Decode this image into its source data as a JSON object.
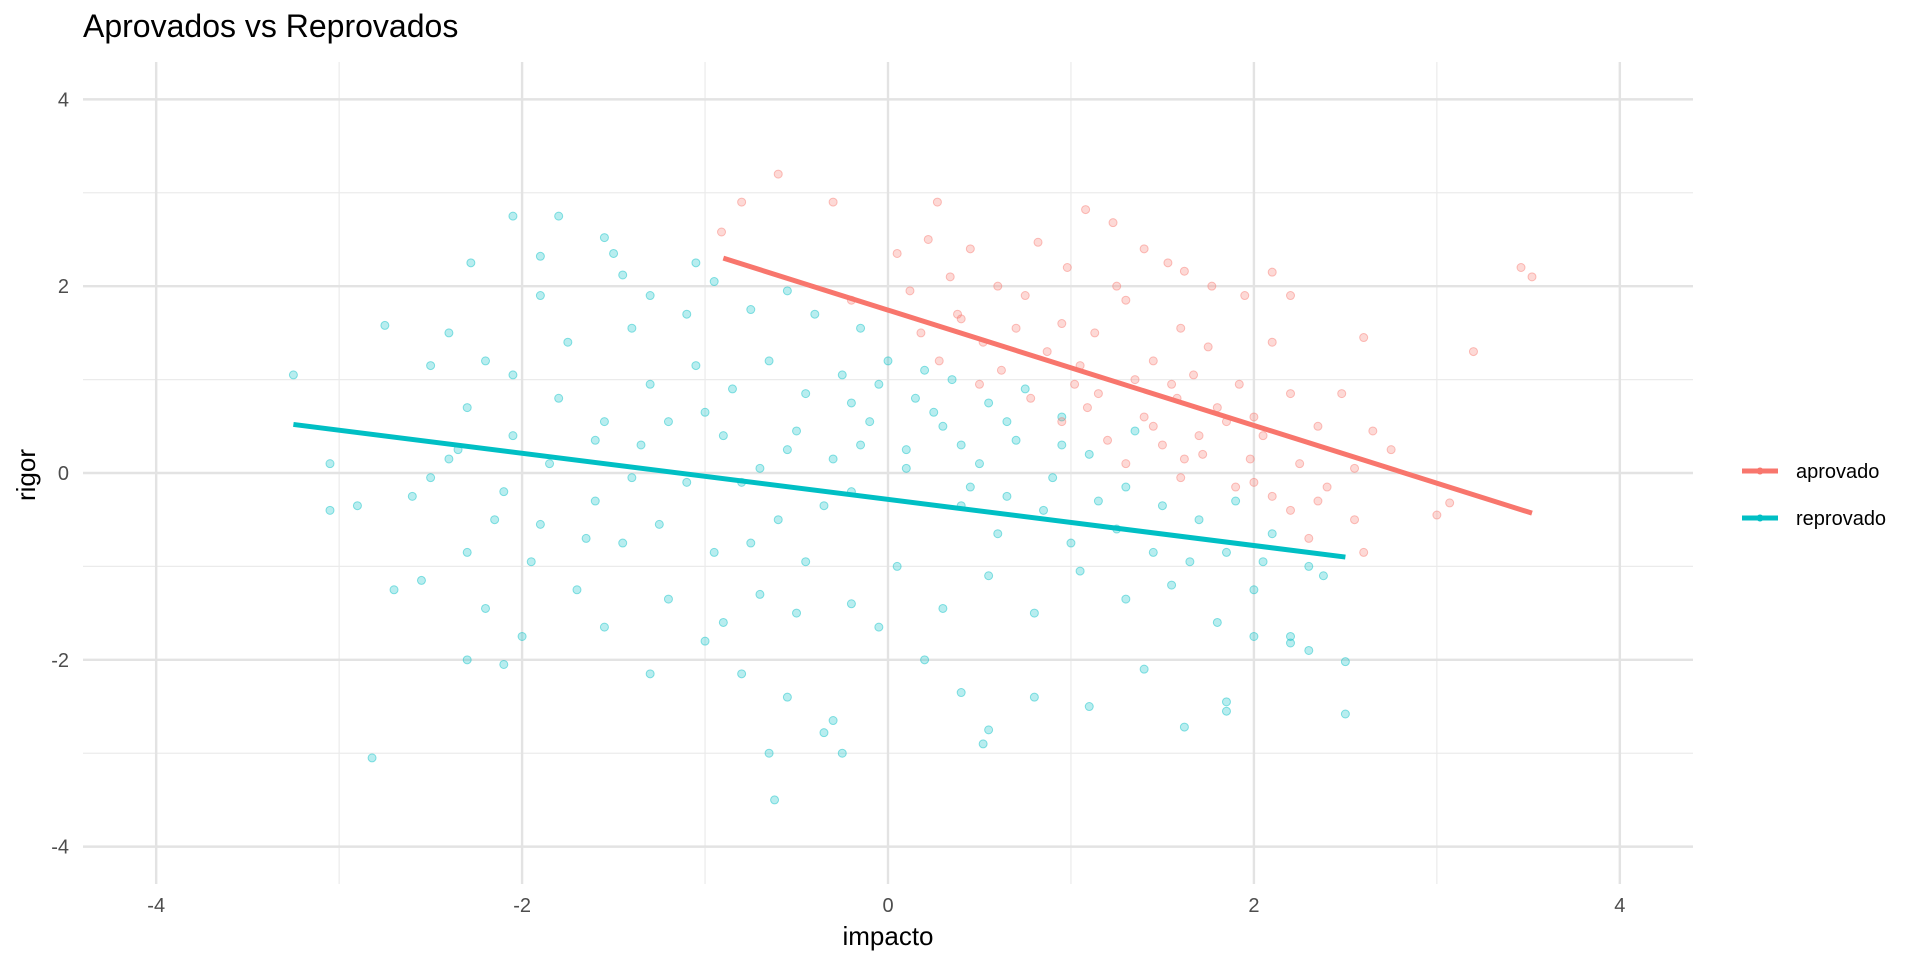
{
  "chart_data": {
    "type": "scatter",
    "title": "Aprovados vs Reprovados",
    "xlabel": "impacto",
    "ylabel": "rigor",
    "xlim": [
      -4.4,
      4.4
    ],
    "ylim": [
      -4.4,
      4.4
    ],
    "x_ticks": [
      -4,
      -2,
      0,
      2,
      4
    ],
    "y_ticks": [
      -4,
      -2,
      0,
      2,
      4
    ],
    "x_tick_labels": [
      "-4",
      "-2",
      "0",
      "2",
      "4"
    ],
    "y_tick_labels": [
      "-4",
      "-2",
      "0",
      "2",
      "4"
    ],
    "grid": true,
    "legend_position": "right",
    "series": [
      {
        "name": "aprovado",
        "color": "#F8766D",
        "trend_line": [
          [
            -0.9,
            2.3
          ],
          [
            3.52,
            -0.43
          ]
        ],
        "points": [
          [
            -0.6,
            3.2
          ],
          [
            -0.8,
            2.9
          ],
          [
            -0.3,
            2.9
          ],
          [
            0.27,
            2.9
          ],
          [
            1.08,
            2.82
          ],
          [
            1.23,
            2.68
          ],
          [
            3.46,
            2.2
          ],
          [
            3.52,
            2.1
          ],
          [
            -0.91,
            2.58
          ],
          [
            0.82,
            2.47
          ],
          [
            0.22,
            2.5
          ],
          [
            0.45,
            2.4
          ],
          [
            1.4,
            2.4
          ],
          [
            1.62,
            2.16
          ],
          [
            2.1,
            2.15
          ],
          [
            1.77,
            2.0
          ],
          [
            0.05,
            2.35
          ],
          [
            0.34,
            2.1
          ],
          [
            0.6,
            2.0
          ],
          [
            0.98,
            2.2
          ],
          [
            1.25,
            2.0
          ],
          [
            1.53,
            2.25
          ],
          [
            0.12,
            1.95
          ],
          [
            0.75,
            1.9
          ],
          [
            -0.2,
            1.85
          ],
          [
            0.38,
            1.7
          ],
          [
            0.95,
            1.6
          ],
          [
            1.3,
            1.85
          ],
          [
            1.6,
            1.55
          ],
          [
            1.95,
            1.9
          ],
          [
            2.2,
            1.9
          ],
          [
            2.6,
            1.45
          ],
          [
            3.2,
            1.3
          ],
          [
            0.18,
            1.5
          ],
          [
            0.52,
            1.4
          ],
          [
            0.87,
            1.3
          ],
          [
            1.13,
            1.5
          ],
          [
            1.45,
            1.2
          ],
          [
            1.75,
            1.35
          ],
          [
            2.1,
            1.4
          ],
          [
            0.28,
            1.2
          ],
          [
            0.62,
            1.1
          ],
          [
            1.02,
            0.95
          ],
          [
            1.35,
            1.0
          ],
          [
            1.67,
            1.05
          ],
          [
            1.92,
            0.95
          ],
          [
            2.2,
            0.85
          ],
          [
            2.48,
            0.85
          ],
          [
            0.78,
            0.8
          ],
          [
            1.09,
            0.7
          ],
          [
            1.4,
            0.6
          ],
          [
            1.58,
            0.8
          ],
          [
            1.85,
            0.55
          ],
          [
            2.05,
            0.4
          ],
          [
            2.35,
            0.5
          ],
          [
            2.65,
            0.45
          ],
          [
            0.95,
            0.55
          ],
          [
            1.2,
            0.35
          ],
          [
            1.5,
            0.3
          ],
          [
            1.72,
            0.2
          ],
          [
            1.98,
            0.15
          ],
          [
            2.25,
            0.1
          ],
          [
            2.55,
            0.05
          ],
          [
            0.5,
            0.95
          ],
          [
            1.3,
            0.1
          ],
          [
            1.6,
            -0.05
          ],
          [
            1.9,
            -0.15
          ],
          [
            2.1,
            -0.25
          ],
          [
            2.35,
            -0.3
          ],
          [
            2.55,
            -0.5
          ],
          [
            3.0,
            -0.45
          ],
          [
            3.07,
            -0.32
          ],
          [
            1.45,
            0.5
          ],
          [
            1.7,
            0.4
          ],
          [
            2.0,
            -0.1
          ],
          [
            2.2,
            -0.4
          ],
          [
            2.4,
            -0.15
          ],
          [
            2.6,
            -0.85
          ],
          [
            2.3,
            -0.7
          ],
          [
            2.75,
            0.25
          ],
          [
            0.4,
            1.65
          ],
          [
            0.7,
            1.55
          ],
          [
            1.05,
            1.15
          ],
          [
            1.55,
            0.95
          ],
          [
            1.8,
            0.7
          ],
          [
            2.0,
            0.6
          ],
          [
            1.15,
            0.85
          ],
          [
            1.62,
            0.15
          ]
        ]
      },
      {
        "name": "reprovado",
        "color": "#00BFC4",
        "trend_line": [
          [
            -3.25,
            0.52
          ],
          [
            2.5,
            -0.9
          ]
        ],
        "points": [
          [
            -3.25,
            1.05
          ],
          [
            -2.75,
            1.58
          ],
          [
            -2.28,
            2.25
          ],
          [
            -2.05,
            2.75
          ],
          [
            -1.8,
            2.75
          ],
          [
            -1.55,
            2.52
          ],
          [
            -1.9,
            2.32
          ],
          [
            -1.5,
            2.35
          ],
          [
            -1.45,
            2.12
          ],
          [
            -1.05,
            2.25
          ],
          [
            -0.95,
            2.05
          ],
          [
            -1.3,
            1.9
          ],
          [
            -1.9,
            1.9
          ],
          [
            -2.4,
            1.5
          ],
          [
            -2.5,
            1.15
          ],
          [
            -2.2,
            1.2
          ],
          [
            -2.05,
            1.05
          ],
          [
            -1.75,
            1.4
          ],
          [
            -1.4,
            1.55
          ],
          [
            -1.1,
            1.7
          ],
          [
            -0.75,
            1.75
          ],
          [
            -0.55,
            1.95
          ],
          [
            -0.4,
            1.7
          ],
          [
            -0.15,
            1.55
          ],
          [
            -2.3,
            0.7
          ],
          [
            -2.05,
            0.4
          ],
          [
            -1.8,
            0.8
          ],
          [
            -1.55,
            0.55
          ],
          [
            -1.3,
            0.95
          ],
          [
            -1.05,
            1.15
          ],
          [
            -0.85,
            0.9
          ],
          [
            -0.65,
            1.2
          ],
          [
            -0.45,
            0.85
          ],
          [
            -0.25,
            1.05
          ],
          [
            -0.05,
            0.95
          ],
          [
            0.15,
            0.8
          ],
          [
            0.35,
            1.0
          ],
          [
            0.55,
            0.75
          ],
          [
            0.75,
            0.9
          ],
          [
            0.95,
            0.6
          ],
          [
            -3.05,
            0.1
          ],
          [
            -2.6,
            -0.25
          ],
          [
            -2.35,
            0.25
          ],
          [
            -2.1,
            -0.2
          ],
          [
            -1.85,
            0.1
          ],
          [
            -1.6,
            -0.3
          ],
          [
            -1.35,
            0.3
          ],
          [
            -1.1,
            -0.1
          ],
          [
            -0.9,
            0.4
          ],
          [
            -0.7,
            0.05
          ],
          [
            -0.5,
            0.45
          ],
          [
            -0.3,
            0.15
          ],
          [
            -0.1,
            0.55
          ],
          [
            0.1,
            0.25
          ],
          [
            0.3,
            0.5
          ],
          [
            0.5,
            0.1
          ],
          [
            0.7,
            0.35
          ],
          [
            0.9,
            -0.05
          ],
          [
            1.1,
            0.2
          ],
          [
            1.3,
            -0.15
          ],
          [
            1.5,
            -0.35
          ],
          [
            1.7,
            -0.5
          ],
          [
            1.9,
            -0.3
          ],
          [
            2.1,
            -0.65
          ],
          [
            -3.05,
            -0.4
          ],
          [
            -2.9,
            -0.35
          ],
          [
            -2.7,
            -1.25
          ],
          [
            -2.55,
            -1.15
          ],
          [
            -2.3,
            -0.85
          ],
          [
            -2.2,
            -1.45
          ],
          [
            -1.95,
            -0.95
          ],
          [
            -1.7,
            -1.25
          ],
          [
            -1.45,
            -0.75
          ],
          [
            -1.2,
            -1.35
          ],
          [
            -0.95,
            -0.85
          ],
          [
            -0.7,
            -1.3
          ],
          [
            -0.45,
            -0.95
          ],
          [
            -0.2,
            -1.4
          ],
          [
            0.05,
            -1.0
          ],
          [
            0.3,
            -1.45
          ],
          [
            0.55,
            -1.1
          ],
          [
            0.8,
            -1.5
          ],
          [
            1.05,
            -1.05
          ],
          [
            1.3,
            -1.35
          ],
          [
            1.55,
            -1.2
          ],
          [
            1.8,
            -1.6
          ],
          [
            2.0,
            -1.25
          ],
          [
            2.2,
            -1.75
          ],
          [
            2.3,
            -1.9
          ],
          [
            2.5,
            -2.02
          ],
          [
            2.5,
            -2.58
          ],
          [
            -2.3,
            -2.0
          ],
          [
            -2.1,
            -2.05
          ],
          [
            -2.0,
            -1.75
          ],
          [
            -1.55,
            -1.65
          ],
          [
            -1.3,
            -2.15
          ],
          [
            -1.0,
            -1.8
          ],
          [
            -0.8,
            -2.15
          ],
          [
            -0.55,
            -2.4
          ],
          [
            -0.3,
            -2.65
          ],
          [
            -0.35,
            -2.78
          ],
          [
            -0.25,
            -3.0
          ],
          [
            -0.65,
            -3.0
          ],
          [
            -0.62,
            -3.5
          ],
          [
            -2.82,
            -3.05
          ],
          [
            0.4,
            -2.35
          ],
          [
            0.55,
            -2.75
          ],
          [
            0.52,
            -2.9
          ],
          [
            0.8,
            -2.4
          ],
          [
            1.1,
            -2.5
          ],
          [
            1.4,
            -2.1
          ],
          [
            1.62,
            -2.72
          ],
          [
            1.85,
            -2.45
          ],
          [
            1.85,
            -2.55
          ],
          [
            2.2,
            -1.82
          ],
          [
            2.0,
            -1.75
          ],
          [
            -0.05,
            -1.65
          ],
          [
            0.2,
            -2.0
          ],
          [
            -0.5,
            -1.5
          ],
          [
            -0.9,
            -1.6
          ],
          [
            0.1,
            0.05
          ],
          [
            -0.2,
            -0.2
          ],
          [
            0.4,
            -0.35
          ],
          [
            0.6,
            -0.65
          ],
          [
            -0.6,
            -0.5
          ],
          [
            -0.8,
            -0.1
          ],
          [
            -1.0,
            0.65
          ],
          [
            -1.25,
            -0.55
          ],
          [
            -0.15,
            0.3
          ],
          [
            0.25,
            0.65
          ],
          [
            0.45,
            -0.15
          ],
          [
            0.65,
            0.55
          ],
          [
            0.85,
            -0.4
          ],
          [
            -0.35,
            -0.35
          ],
          [
            -0.55,
            0.25
          ],
          [
            -0.75,
            -0.75
          ],
          [
            1.25,
            -0.6
          ],
          [
            1.45,
            -0.85
          ],
          [
            1.65,
            -0.95
          ],
          [
            1.85,
            -0.85
          ],
          [
            2.05,
            -0.95
          ],
          [
            2.3,
            -1.0
          ],
          [
            2.38,
            -1.1
          ],
          [
            1.0,
            -0.75
          ],
          [
            -1.6,
            0.35
          ],
          [
            -1.4,
            -0.05
          ],
          [
            -1.2,
            0.55
          ],
          [
            -1.65,
            -0.7
          ],
          [
            -1.9,
            -0.55
          ],
          [
            -2.15,
            -0.5
          ],
          [
            -2.4,
            0.15
          ],
          [
            -2.5,
            -0.05
          ],
          [
            0.0,
            1.2
          ],
          [
            -0.2,
            0.75
          ],
          [
            0.2,
            1.1
          ],
          [
            0.4,
            0.3
          ],
          [
            0.65,
            -0.25
          ],
          [
            0.95,
            0.3
          ],
          [
            1.15,
            -0.3
          ],
          [
            1.35,
            0.45
          ]
        ]
      }
    ]
  }
}
